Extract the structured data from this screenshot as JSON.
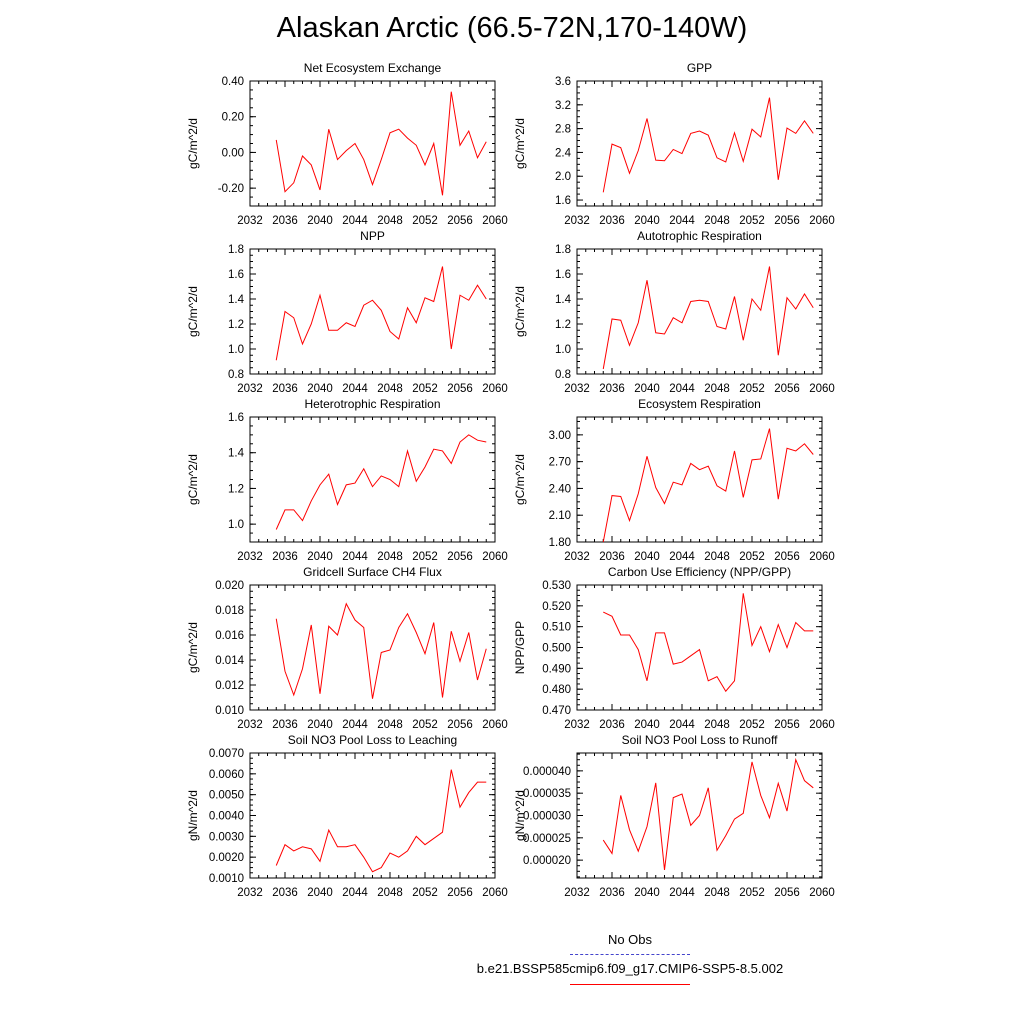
{
  "figure_title": "Alaskan Arctic (66.5-72N,170-140W)",
  "line_color": "#ff0000",
  "obs_line_color": "#4444cc",
  "x_axis": {
    "ticks": [
      2032,
      2036,
      2040,
      2044,
      2048,
      2052,
      2056,
      2060
    ],
    "range": [
      2032,
      2060
    ]
  },
  "legend": {
    "obs_label": "No Obs",
    "model_label": "b.e21.BSSP585cmip6.f09_g17.CMIP6-SSP5-8.5.002"
  },
  "chart_data": [
    {
      "type": "line",
      "title": "Net Ecosystem Exchange",
      "ylabel": "gC/m^2/d",
      "ylim": [
        -0.3,
        0.4
      ],
      "yticks": [
        -0.2,
        0.0,
        0.2,
        0.4
      ],
      "ytick_labels": [
        "-0.20",
        "0.00",
        "0.20",
        "0.40"
      ],
      "x": [
        2035,
        2036,
        2037,
        2038,
        2039,
        2040,
        2041,
        2042,
        2043,
        2044,
        2045,
        2046,
        2047,
        2048,
        2049,
        2050,
        2051,
        2052,
        2053,
        2054,
        2055,
        2056,
        2057,
        2058,
        2059
      ],
      "values": [
        0.07,
        -0.22,
        -0.17,
        -0.02,
        -0.07,
        -0.21,
        0.13,
        -0.04,
        0.01,
        0.05,
        -0.04,
        -0.18,
        -0.04,
        0.11,
        0.13,
        0.08,
        0.04,
        -0.07,
        0.05,
        -0.24,
        0.34,
        0.04,
        0.12,
        -0.03,
        0.06
      ]
    },
    {
      "type": "line",
      "title": "GPP",
      "ylabel": "gC/m^2/d",
      "ylim": [
        1.5,
        3.6
      ],
      "yticks": [
        1.6,
        2.0,
        2.4,
        2.8,
        3.2,
        3.6
      ],
      "ytick_labels": [
        "1.6",
        "2.0",
        "2.4",
        "2.8",
        "3.2",
        "3.6"
      ],
      "x": [
        2035,
        2036,
        2037,
        2038,
        2039,
        2040,
        2041,
        2042,
        2043,
        2044,
        2045,
        2046,
        2047,
        2048,
        2049,
        2050,
        2051,
        2052,
        2053,
        2054,
        2055,
        2056,
        2057,
        2058,
        2059
      ],
      "values": [
        1.73,
        2.54,
        2.48,
        2.05,
        2.43,
        2.97,
        2.27,
        2.26,
        2.45,
        2.38,
        2.72,
        2.76,
        2.69,
        2.31,
        2.24,
        2.73,
        2.25,
        2.79,
        2.66,
        3.32,
        1.94,
        2.81,
        2.72,
        2.93,
        2.72
      ]
    },
    {
      "type": "line",
      "title": "NPP",
      "ylabel": "gC/m^2/d",
      "ylim": [
        0.8,
        1.8
      ],
      "yticks": [
        0.8,
        1.0,
        1.2,
        1.4,
        1.6,
        1.8
      ],
      "ytick_labels": [
        "0.8",
        "1.0",
        "1.2",
        "1.4",
        "1.6",
        "1.8"
      ],
      "x": [
        2035,
        2036,
        2037,
        2038,
        2039,
        2040,
        2041,
        2042,
        2043,
        2044,
        2045,
        2046,
        2047,
        2048,
        2049,
        2050,
        2051,
        2052,
        2053,
        2054,
        2055,
        2056,
        2057,
        2058,
        2059
      ],
      "values": [
        0.91,
        1.3,
        1.25,
        1.04,
        1.2,
        1.43,
        1.15,
        1.15,
        1.21,
        1.18,
        1.35,
        1.39,
        1.31,
        1.14,
        1.08,
        1.33,
        1.21,
        1.41,
        1.38,
        1.66,
        1.0,
        1.43,
        1.39,
        1.51,
        1.4
      ]
    },
    {
      "type": "line",
      "title": "Autotrophic Respiration",
      "ylabel": "gC/m^2/d",
      "ylim": [
        0.8,
        1.8
      ],
      "yticks": [
        0.8,
        1.0,
        1.2,
        1.4,
        1.6,
        1.8
      ],
      "ytick_labels": [
        "0.8",
        "1.0",
        "1.2",
        "1.4",
        "1.6",
        "1.8"
      ],
      "x": [
        2035,
        2036,
        2037,
        2038,
        2039,
        2040,
        2041,
        2042,
        2043,
        2044,
        2045,
        2046,
        2047,
        2048,
        2049,
        2050,
        2051,
        2052,
        2053,
        2054,
        2055,
        2056,
        2057,
        2058,
        2059
      ],
      "values": [
        0.84,
        1.24,
        1.23,
        1.03,
        1.21,
        1.55,
        1.13,
        1.12,
        1.25,
        1.21,
        1.38,
        1.39,
        1.38,
        1.18,
        1.16,
        1.42,
        1.07,
        1.4,
        1.31,
        1.66,
        0.95,
        1.41,
        1.32,
        1.44,
        1.33
      ]
    },
    {
      "type": "line",
      "title": "Heterotrophic Respiration",
      "ylabel": "gC/m^2/d",
      "ylim": [
        0.9,
        1.6
      ],
      "yticks": [
        1.0,
        1.2,
        1.4,
        1.6
      ],
      "ytick_labels": [
        "1.0",
        "1.2",
        "1.4",
        "1.6"
      ],
      "x": [
        2035,
        2036,
        2037,
        2038,
        2039,
        2040,
        2041,
        2042,
        2043,
        2044,
        2045,
        2046,
        2047,
        2048,
        2049,
        2050,
        2051,
        2052,
        2053,
        2054,
        2055,
        2056,
        2057,
        2058,
        2059
      ],
      "values": [
        0.97,
        1.08,
        1.08,
        1.02,
        1.13,
        1.22,
        1.28,
        1.11,
        1.22,
        1.23,
        1.31,
        1.21,
        1.27,
        1.25,
        1.21,
        1.41,
        1.24,
        1.32,
        1.42,
        1.41,
        1.34,
        1.46,
        1.5,
        1.47,
        1.46
      ]
    },
    {
      "type": "line",
      "title": "Ecosystem Respiration",
      "ylabel": "gC/m^2/d",
      "ylim": [
        1.8,
        3.2
      ],
      "yticks": [
        1.8,
        2.1,
        2.4,
        2.7,
        3.0
      ],
      "ytick_labels": [
        "1.80",
        "2.10",
        "2.40",
        "2.70",
        "3.00"
      ],
      "x": [
        2035,
        2036,
        2037,
        2038,
        2039,
        2040,
        2041,
        2042,
        2043,
        2044,
        2045,
        2046,
        2047,
        2048,
        2049,
        2050,
        2051,
        2052,
        2053,
        2054,
        2055,
        2056,
        2057,
        2058,
        2059
      ],
      "values": [
        1.8,
        2.32,
        2.31,
        2.04,
        2.34,
        2.76,
        2.41,
        2.23,
        2.47,
        2.44,
        2.68,
        2.61,
        2.65,
        2.43,
        2.37,
        2.82,
        2.3,
        2.72,
        2.73,
        3.07,
        2.28,
        2.85,
        2.82,
        2.9,
        2.78
      ]
    },
    {
      "type": "line",
      "title": "Gridcell Surface CH4 Flux",
      "ylabel": "gC/m^2/d",
      "ylim": [
        0.01,
        0.02
      ],
      "yticks": [
        0.01,
        0.012,
        0.014,
        0.016,
        0.018,
        0.02
      ],
      "ytick_labels": [
        "0.010",
        "0.012",
        "0.014",
        "0.016",
        "0.018",
        "0.020"
      ],
      "x": [
        2035,
        2036,
        2037,
        2038,
        2039,
        2040,
        2041,
        2042,
        2043,
        2044,
        2045,
        2046,
        2047,
        2048,
        2049,
        2050,
        2051,
        2052,
        2053,
        2054,
        2055,
        2056,
        2057,
        2058,
        2059
      ],
      "values": [
        0.0173,
        0.0131,
        0.0112,
        0.0133,
        0.0168,
        0.0113,
        0.0167,
        0.016,
        0.0185,
        0.0172,
        0.0166,
        0.0109,
        0.0146,
        0.0148,
        0.0166,
        0.0177,
        0.0162,
        0.0145,
        0.017,
        0.011,
        0.0163,
        0.0139,
        0.0162,
        0.0124,
        0.0149
      ]
    },
    {
      "type": "line",
      "title": "Carbon Use Efficiency (NPP/GPP)",
      "ylabel": "NPP/GPP",
      "ylim": [
        0.47,
        0.53
      ],
      "yticks": [
        0.47,
        0.48,
        0.49,
        0.5,
        0.51,
        0.52,
        0.53
      ],
      "ytick_labels": [
        "0.470",
        "0.480",
        "0.490",
        "0.500",
        "0.510",
        "0.520",
        "0.530"
      ],
      "x": [
        2035,
        2036,
        2037,
        2038,
        2039,
        2040,
        2041,
        2042,
        2043,
        2044,
        2045,
        2046,
        2047,
        2048,
        2049,
        2050,
        2051,
        2052,
        2053,
        2054,
        2055,
        2056,
        2057,
        2058,
        2059
      ],
      "values": [
        0.517,
        0.515,
        0.506,
        0.506,
        0.499,
        0.484,
        0.507,
        0.507,
        0.492,
        0.493,
        0.496,
        0.499,
        0.484,
        0.486,
        0.479,
        0.484,
        0.526,
        0.501,
        0.51,
        0.498,
        0.511,
        0.5,
        0.512,
        0.508,
        0.508
      ]
    },
    {
      "type": "line",
      "title": "Soil NO3 Pool Loss to Leaching",
      "ylabel": "gN/m^2/d",
      "ylim": [
        0.001,
        0.007
      ],
      "yticks": [
        0.001,
        0.002,
        0.003,
        0.004,
        0.005,
        0.006,
        0.007
      ],
      "ytick_labels": [
        "0.0010",
        "0.0020",
        "0.0030",
        "0.0040",
        "0.0050",
        "0.0060",
        "0.0070"
      ],
      "x": [
        2035,
        2036,
        2037,
        2038,
        2039,
        2040,
        2041,
        2042,
        2043,
        2044,
        2045,
        2046,
        2047,
        2048,
        2049,
        2050,
        2051,
        2052,
        2053,
        2054,
        2055,
        2056,
        2057,
        2058,
        2059
      ],
      "values": [
        0.0016,
        0.0026,
        0.0023,
        0.0025,
        0.0024,
        0.0018,
        0.0033,
        0.0025,
        0.0025,
        0.0026,
        0.002,
        0.0013,
        0.0015,
        0.0022,
        0.002,
        0.0023,
        0.003,
        0.0026,
        0.0029,
        0.0032,
        0.0062,
        0.0044,
        0.0051,
        0.0056,
        0.0056
      ]
    },
    {
      "type": "line",
      "title": "Soil NO3 Pool Loss to Runoff",
      "ylabel": "gN/m^2/d",
      "ylim": [
        1.6e-05,
        4.4e-05
      ],
      "yticks": [
        2e-05,
        2.5e-05,
        3e-05,
        3.5e-05,
        4e-05
      ],
      "ytick_labels": [
        "0.000020",
        "0.000025",
        "0.000030",
        "0.000035",
        "0.000040"
      ],
      "x": [
        2035,
        2036,
        2037,
        2038,
        2039,
        2040,
        2041,
        2042,
        2043,
        2044,
        2045,
        2046,
        2047,
        2048,
        2049,
        2050,
        2051,
        2052,
        2053,
        2054,
        2055,
        2056,
        2057,
        2058,
        2059
      ],
      "values": [
        2.45e-05,
        2.15e-05,
        3.45e-05,
        2.68e-05,
        2.2e-05,
        2.75e-05,
        3.73e-05,
        1.78e-05,
        3.4e-05,
        3.48e-05,
        2.78e-05,
        3e-05,
        3.62e-05,
        2.22e-05,
        2.55e-05,
        2.92e-05,
        3.05e-05,
        4.2e-05,
        3.45e-05,
        2.95e-05,
        3.72e-05,
        3.1e-05,
        4.25e-05,
        3.78e-05,
        3.62e-05
      ]
    }
  ]
}
